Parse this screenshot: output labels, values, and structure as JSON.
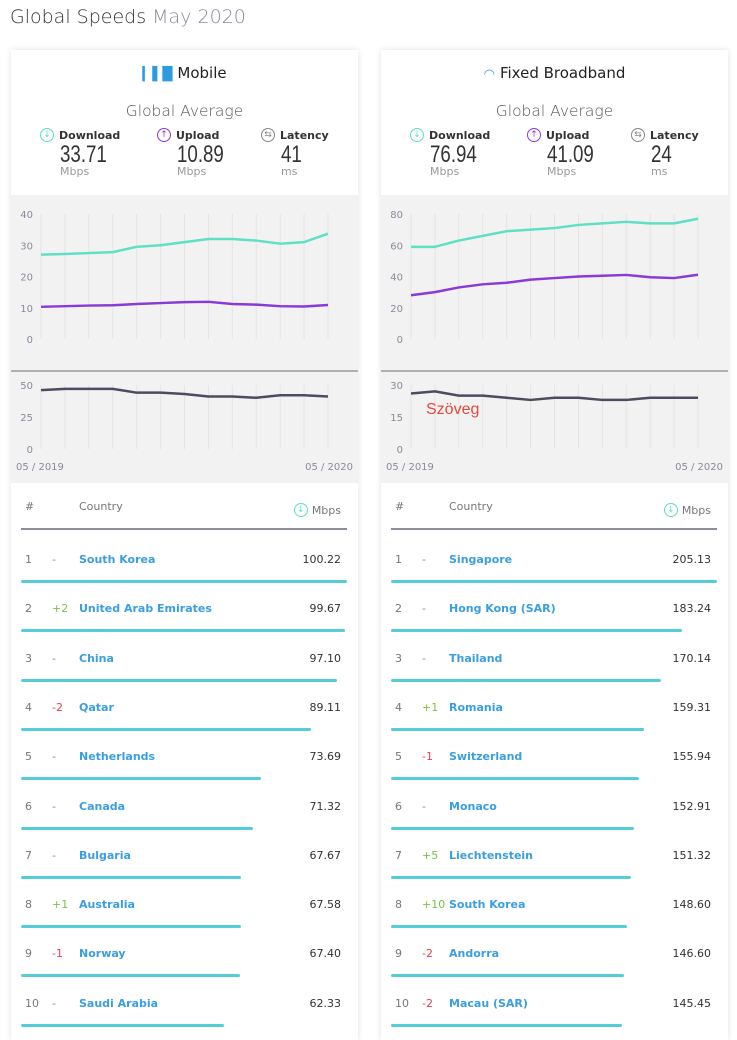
{
  "title": "Global Speeds",
  "title_date": "May 2020",
  "colors": {
    "download": "#5ee0c4",
    "upload": "#8a3ad8",
    "latency": "#4c4c5e",
    "bar": "#55cdd8",
    "link": "#3a9ee0"
  },
  "panels": [
    {
      "name": "Mobile",
      "icon": "signal-bars-icon",
      "global_average": "Global Average",
      "metrics": [
        {
          "label": "Download",
          "value": "33.71",
          "unit": "Mbps"
        },
        {
          "label": "Upload",
          "value": "10.89",
          "unit": "Mbps"
        },
        {
          "label": "Latency",
          "value": "41",
          "unit": "ms"
        }
      ],
      "table": {
        "col_rank": "#",
        "col_country": "Country",
        "col_value": "Mbps",
        "rows": [
          [
            "1",
            "-",
            "South Korea",
            "100.22"
          ],
          [
            "2",
            "+2",
            "United Arab Emirates",
            "99.67"
          ],
          [
            "3",
            "-",
            "China",
            "97.10"
          ],
          [
            "4",
            "-2",
            "Qatar",
            "89.11"
          ],
          [
            "5",
            "-",
            "Netherlands",
            "73.69"
          ],
          [
            "6",
            "-",
            "Canada",
            "71.32"
          ],
          [
            "7",
            "-",
            "Bulgaria",
            "67.67"
          ],
          [
            "8",
            "+1",
            "Australia",
            "67.58"
          ],
          [
            "9",
            "-1",
            "Norway",
            "67.40"
          ],
          [
            "10",
            "-",
            "Saudi Arabia",
            "62.33"
          ]
        ]
      }
    },
    {
      "name": "Fixed Broadband",
      "icon": "wifi-icon",
      "global_average": "Global Average",
      "metrics": [
        {
          "label": "Download",
          "value": "76.94",
          "unit": "Mbps"
        },
        {
          "label": "Upload",
          "value": "41.09",
          "unit": "Mbps"
        },
        {
          "label": "Latency",
          "value": "24",
          "unit": "ms"
        }
      ],
      "annotation": "Szöveg",
      "table": {
        "col_rank": "#",
        "col_country": "Country",
        "col_value": "Mbps",
        "rows": [
          [
            "1",
            "-",
            "Singapore",
            "205.13"
          ],
          [
            "2",
            "-",
            "Hong Kong (SAR)",
            "183.24"
          ],
          [
            "3",
            "-",
            "Thailand",
            "170.14"
          ],
          [
            "4",
            "+1",
            "Romania",
            "159.31"
          ],
          [
            "5",
            "-1",
            "Switzerland",
            "155.94"
          ],
          [
            "6",
            "-",
            "Monaco",
            "152.91"
          ],
          [
            "7",
            "+5",
            "Liechtenstein",
            "151.32"
          ],
          [
            "8",
            "+10",
            "South Korea",
            "148.60"
          ],
          [
            "9",
            "-2",
            "Andorra",
            "146.60"
          ],
          [
            "10",
            "-2",
            "Macau (SAR)",
            "145.45"
          ]
        ]
      }
    }
  ],
  "chart_data": [
    {
      "type": "line",
      "title": "Mobile",
      "x_start": "05 / 2019",
      "x_end": "05 / 2020",
      "speed_ylim": [
        0,
        40
      ],
      "speed_ticks": [
        "0",
        "10",
        "20",
        "30",
        "40"
      ],
      "latency_ylim": [
        0,
        50
      ],
      "latency_ticks": [
        "0",
        "25",
        "50"
      ],
      "series": [
        {
          "name": "Download",
          "values": [
            27,
            27.2,
            27.5,
            27.8,
            29.5,
            30,
            31,
            32,
            32,
            31.5,
            30.5,
            31,
            33.71
          ]
        },
        {
          "name": "Upload",
          "values": [
            10.3,
            10.5,
            10.7,
            10.8,
            11.2,
            11.5,
            11.8,
            11.9,
            11.2,
            11,
            10.5,
            10.4,
            10.89
          ]
        },
        {
          "name": "Latency",
          "values": [
            46,
            47,
            47,
            47,
            44,
            44,
            43,
            41,
            41,
            40,
            42,
            42,
            41
          ]
        }
      ]
    },
    {
      "type": "line",
      "title": "Fixed Broadband",
      "x_start": "05 / 2019",
      "x_end": "05 / 2020",
      "speed_ylim": [
        0,
        80
      ],
      "speed_ticks": [
        "0",
        "20",
        "40",
        "60",
        "80"
      ],
      "latency_ylim": [
        0,
        30
      ],
      "latency_ticks": [
        "0",
        "15",
        "30"
      ],
      "series": [
        {
          "name": "Download",
          "values": [
            59,
            59,
            63,
            66,
            69,
            70,
            71,
            73,
            74,
            75,
            74,
            74,
            76.94
          ]
        },
        {
          "name": "Upload",
          "values": [
            28,
            30,
            33,
            35,
            36,
            38,
            39,
            40,
            40.5,
            41,
            39.5,
            39,
            41.09
          ]
        },
        {
          "name": "Latency",
          "values": [
            26,
            27,
            25,
            25,
            24,
            23,
            24,
            24,
            23,
            23,
            24,
            24,
            24
          ]
        }
      ]
    }
  ]
}
